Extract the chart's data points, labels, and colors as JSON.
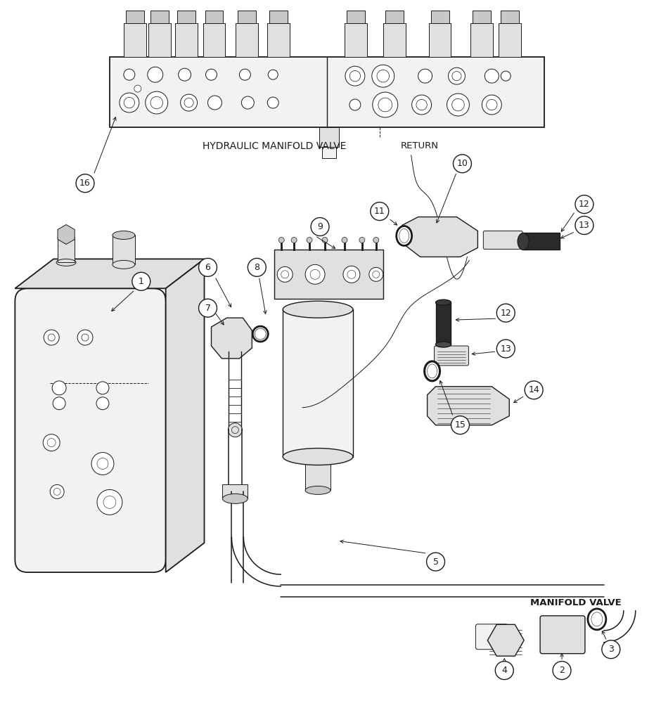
{
  "bg_color": "#ffffff",
  "line_color": "#1a1a1a",
  "label_hydraulic_manifold": "HYDRAULIC MANIFOLD VALVE",
  "label_return": "RETURN",
  "label_manifold_valve": "MANIFOLD VALVE",
  "font_size_small": 8.5,
  "font_size_label": 10,
  "font_size_num": 9,
  "lw_main": 1.0,
  "lw_thin": 0.7,
  "lw_thick": 1.3,
  "lw_pipe": 1.1
}
